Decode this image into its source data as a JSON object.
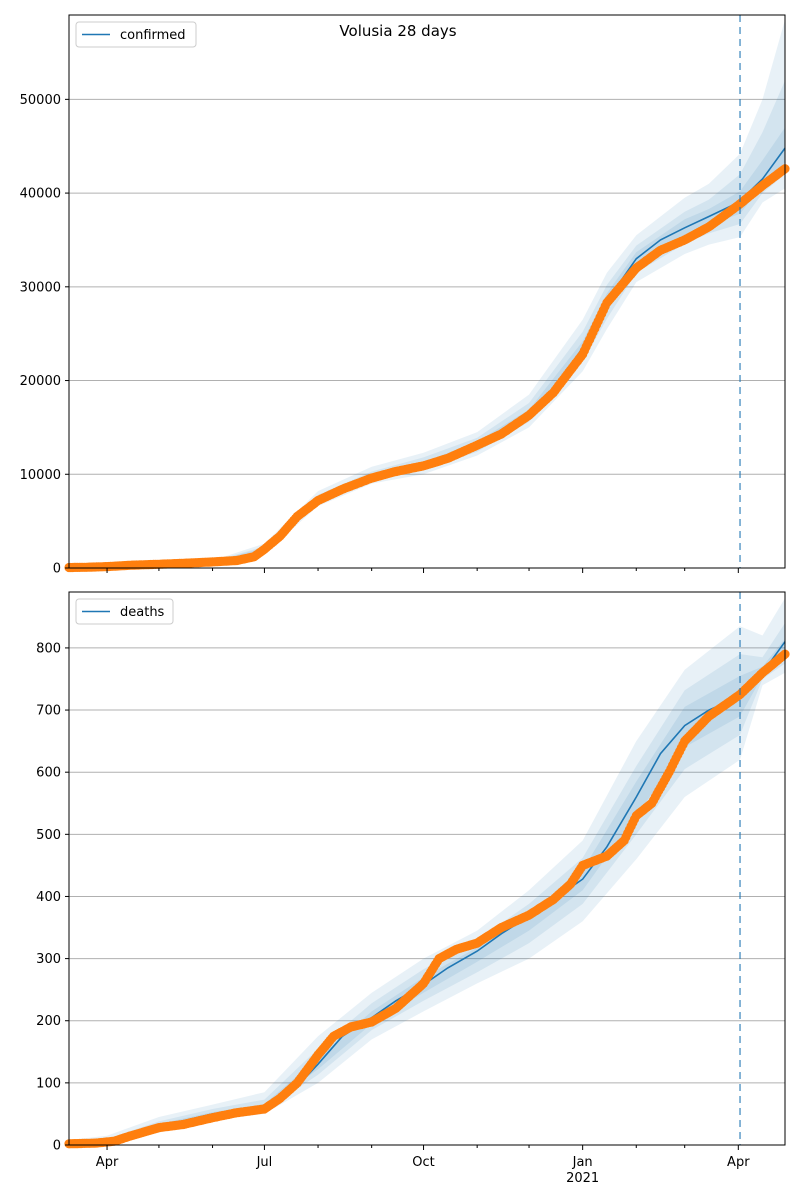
{
  "chart_data": [
    {
      "type": "line",
      "title": "Volusia 28 days",
      "legend": {
        "label": "confirmed",
        "placement": "top-left"
      },
      "grid": "horizontal",
      "x_start": "2020-03-10",
      "x_end": "2021-04-28",
      "split_date": "2021-04-02",
      "ylim": [
        0,
        59000
      ],
      "yticks": [
        0,
        10000,
        20000,
        30000,
        40000,
        50000
      ],
      "model": {
        "x": [
          "2020-03-10",
          "2020-04-01",
          "2020-05-01",
          "2020-06-01",
          "2020-06-20",
          "2020-07-01",
          "2020-07-10",
          "2020-07-20",
          "2020-08-01",
          "2020-08-15",
          "2020-09-01",
          "2020-09-15",
          "2020-10-01",
          "2020-10-15",
          "2020-11-01",
          "2020-11-15",
          "2020-12-01",
          "2020-12-15",
          "2021-01-01",
          "2021-01-15",
          "2021-02-01",
          "2021-02-15",
          "2021-03-01",
          "2021-03-15",
          "2021-04-01",
          "2021-04-15",
          "2021-04-28"
        ],
        "y": [
          0,
          100,
          300,
          600,
          1000,
          2000,
          3500,
          5500,
          7300,
          8600,
          9800,
          10400,
          11000,
          11800,
          13100,
          14500,
          16500,
          19000,
          23500,
          28500,
          33000,
          35000,
          36300,
          37500,
          39000,
          41500,
          44800
        ]
      },
      "bands": [
        {
          "x": [
            "2020-03-10",
            "2020-06-01",
            "2020-07-01",
            "2020-08-01",
            "2020-09-01",
            "2020-10-01",
            "2020-11-01",
            "2020-12-01",
            "2021-01-01",
            "2021-01-15",
            "2021-02-01",
            "2021-03-01",
            "2021-03-15",
            "2021-04-02",
            "2021-04-15",
            "2021-04-28"
          ],
          "lower": [
            0,
            400,
            1500,
            6600,
            9000,
            10000,
            12000,
            15000,
            21000,
            25500,
            30500,
            33500,
            34500,
            35300,
            39000,
            40500
          ],
          "upper": [
            150,
            800,
            2600,
            8200,
            10800,
            12300,
            14500,
            18500,
            26500,
            31500,
            35500,
            39500,
            41000,
            44200,
            50000,
            58500
          ]
        },
        {
          "x": [
            "2020-03-10",
            "2020-06-01",
            "2020-07-01",
            "2020-08-01",
            "2020-09-01",
            "2020-10-01",
            "2020-11-01",
            "2020-12-01",
            "2021-01-01",
            "2021-01-15",
            "2021-02-01",
            "2021-03-01",
            "2021-03-15",
            "2021-04-02",
            "2021-04-15",
            "2021-04-28"
          ],
          "lower": [
            0,
            500,
            1700,
            6900,
            9300,
            10400,
            12400,
            15600,
            22000,
            26600,
            31500,
            34600,
            35700,
            36700,
            40000,
            42000
          ],
          "upper": [
            100,
            700,
            2300,
            7800,
            10300,
            11800,
            13900,
            17600,
            25200,
            30200,
            34400,
            38000,
            39300,
            42000,
            46500,
            52000
          ]
        },
        {
          "x": [
            "2020-03-10",
            "2020-06-01",
            "2020-07-01",
            "2020-08-01",
            "2020-09-01",
            "2020-10-01",
            "2020-11-01",
            "2020-12-01",
            "2021-01-01",
            "2021-01-15",
            "2021-02-01",
            "2021-03-01",
            "2021-03-15",
            "2021-04-02",
            "2021-04-15",
            "2021-04-28"
          ],
          "lower": [
            0,
            550,
            1850,
            7100,
            9550,
            10700,
            12700,
            16100,
            22800,
            27500,
            32300,
            35400,
            36600,
            37800,
            40800,
            43300
          ],
          "upper": [
            80,
            650,
            2150,
            7500,
            10050,
            11300,
            13500,
            16900,
            24200,
            29300,
            33700,
            37200,
            38300,
            40200,
            43500,
            47000
          ]
        }
      ],
      "observed": {
        "x": [
          "2020-03-10",
          "2020-03-20",
          "2020-04-01",
          "2020-04-15",
          "2020-05-01",
          "2020-05-15",
          "2020-06-01",
          "2020-06-15",
          "2020-06-25",
          "2020-07-01",
          "2020-07-10",
          "2020-07-20",
          "2020-08-01",
          "2020-08-15",
          "2020-09-01",
          "2020-09-15",
          "2020-10-01",
          "2020-10-15",
          "2020-11-01",
          "2020-11-15",
          "2020-12-01",
          "2020-12-15",
          "2021-01-01",
          "2021-01-15",
          "2021-02-01",
          "2021-02-15",
          "2021-03-01",
          "2021-03-15",
          "2021-04-01",
          "2021-04-15",
          "2021-04-28"
        ],
        "y": [
          50,
          80,
          150,
          300,
          400,
          500,
          650,
          800,
          1200,
          2000,
          3400,
          5500,
          7200,
          8400,
          9600,
          10300,
          10900,
          11700,
          13100,
          14300,
          16300,
          18700,
          22800,
          28300,
          32000,
          33900,
          35000,
          36400,
          38700,
          40800,
          42600
        ]
      }
    },
    {
      "type": "line",
      "legend": {
        "label": "deaths",
        "placement": "top-left"
      },
      "grid": "horizontal",
      "x_start": "2020-03-10",
      "x_end": "2021-04-28",
      "split_date": "2021-04-02",
      "ylim": [
        0,
        890
      ],
      "yticks": [
        0,
        100,
        200,
        300,
        400,
        500,
        600,
        700,
        800
      ],
      "xticks": [
        {
          "date": "2020-04-01",
          "label": "Apr"
        },
        {
          "date": "2020-07-01",
          "label": "Jul"
        },
        {
          "date": "2020-10-01",
          "label": "Oct"
        },
        {
          "date": "2021-01-01",
          "label": "Jan",
          "sublabel": "2021"
        },
        {
          "date": "2021-04-01",
          "label": "Apr"
        }
      ],
      "model": {
        "x": [
          "2020-03-10",
          "2020-04-01",
          "2020-05-01",
          "2020-06-01",
          "2020-07-01",
          "2020-07-15",
          "2020-08-01",
          "2020-08-15",
          "2020-09-01",
          "2020-09-15",
          "2020-10-01",
          "2020-10-15",
          "2020-11-01",
          "2020-11-15",
          "2020-12-01",
          "2020-12-15",
          "2021-01-01",
          "2021-01-15",
          "2021-02-01",
          "2021-02-15",
          "2021-03-01",
          "2021-03-15",
          "2021-04-02",
          "2021-04-15",
          "2021-04-28"
        ],
        "y": [
          0,
          5,
          30,
          50,
          62,
          80,
          130,
          175,
          205,
          232,
          258,
          285,
          312,
          340,
          368,
          395,
          428,
          480,
          560,
          630,
          675,
          700,
          722,
          760,
          810
        ]
      },
      "bands": [
        {
          "x": [
            "2020-03-10",
            "2020-04-01",
            "2020-05-01",
            "2020-06-01",
            "2020-07-01",
            "2020-08-01",
            "2020-09-01",
            "2020-10-01",
            "2020-11-01",
            "2020-12-01",
            "2021-01-01",
            "2021-02-01",
            "2021-03-01",
            "2021-04-02",
            "2021-04-15",
            "2021-04-28"
          ],
          "lower": [
            0,
            0,
            20,
            40,
            50,
            100,
            170,
            215,
            260,
            300,
            360,
            460,
            560,
            620,
            740,
            760
          ],
          "upper": [
            8,
            15,
            45,
            65,
            85,
            175,
            245,
            300,
            345,
            410,
            490,
            650,
            765,
            835,
            820,
            880
          ]
        },
        {
          "x": [
            "2020-03-10",
            "2020-04-01",
            "2020-05-01",
            "2020-06-01",
            "2020-07-01",
            "2020-08-01",
            "2020-09-01",
            "2020-10-01",
            "2020-11-01",
            "2020-12-01",
            "2021-01-01",
            "2021-02-01",
            "2021-03-01",
            "2021-04-02",
            "2021-04-15",
            "2021-04-28"
          ],
          "lower": [
            0,
            1,
            24,
            44,
            55,
            113,
            185,
            232,
            278,
            325,
            388,
            500,
            605,
            660,
            750,
            775
          ],
          "upper": [
            5,
            10,
            38,
            58,
            73,
            155,
            228,
            283,
            330,
            388,
            462,
            610,
            732,
            790,
            785,
            840
          ]
        },
        {
          "x": [
            "2020-03-10",
            "2020-04-01",
            "2020-05-01",
            "2020-06-01",
            "2020-07-01",
            "2020-08-01",
            "2020-09-01",
            "2020-10-01",
            "2020-11-01",
            "2020-12-01",
            "2021-01-01",
            "2021-02-01",
            "2021-03-01",
            "2021-04-02",
            "2021-04-15",
            "2021-04-28"
          ],
          "lower": [
            0,
            2,
            27,
            47,
            59,
            122,
            195,
            245,
            295,
            345,
            410,
            530,
            640,
            690,
            755,
            790
          ],
          "upper": [
            3,
            8,
            34,
            53,
            66,
            140,
            215,
            270,
            318,
            372,
            443,
            585,
            705,
            755,
            770,
            815
          ]
        }
      ],
      "observed": {
        "x": [
          "2020-03-10",
          "2020-03-25",
          "2020-04-05",
          "2020-04-15",
          "2020-05-01",
          "2020-05-15",
          "2020-06-01",
          "2020-06-15",
          "2020-07-01",
          "2020-07-10",
          "2020-07-20",
          "2020-08-01",
          "2020-08-10",
          "2020-08-20",
          "2020-09-01",
          "2020-09-15",
          "2020-10-01",
          "2020-10-10",
          "2020-10-20",
          "2020-11-01",
          "2020-11-15",
          "2020-12-01",
          "2020-12-15",
          "2020-12-25",
          "2021-01-01",
          "2021-01-15",
          "2021-01-25",
          "2021-02-01",
          "2021-02-10",
          "2021-02-20",
          "2021-03-01",
          "2021-03-15",
          "2021-04-02",
          "2021-04-15",
          "2021-04-28"
        ],
        "y": [
          2,
          3,
          6,
          15,
          28,
          33,
          44,
          52,
          58,
          75,
          100,
          145,
          175,
          190,
          198,
          220,
          260,
          300,
          315,
          325,
          350,
          370,
          395,
          420,
          450,
          465,
          490,
          530,
          550,
          600,
          650,
          690,
          725,
          760,
          790
        ]
      }
    }
  ],
  "colors": {
    "model_line": "#1f77b4",
    "band": "#1f77b4",
    "observed": "#ff7f0e",
    "split_line": "#1f77b4",
    "grid": "#b0b0b0"
  }
}
